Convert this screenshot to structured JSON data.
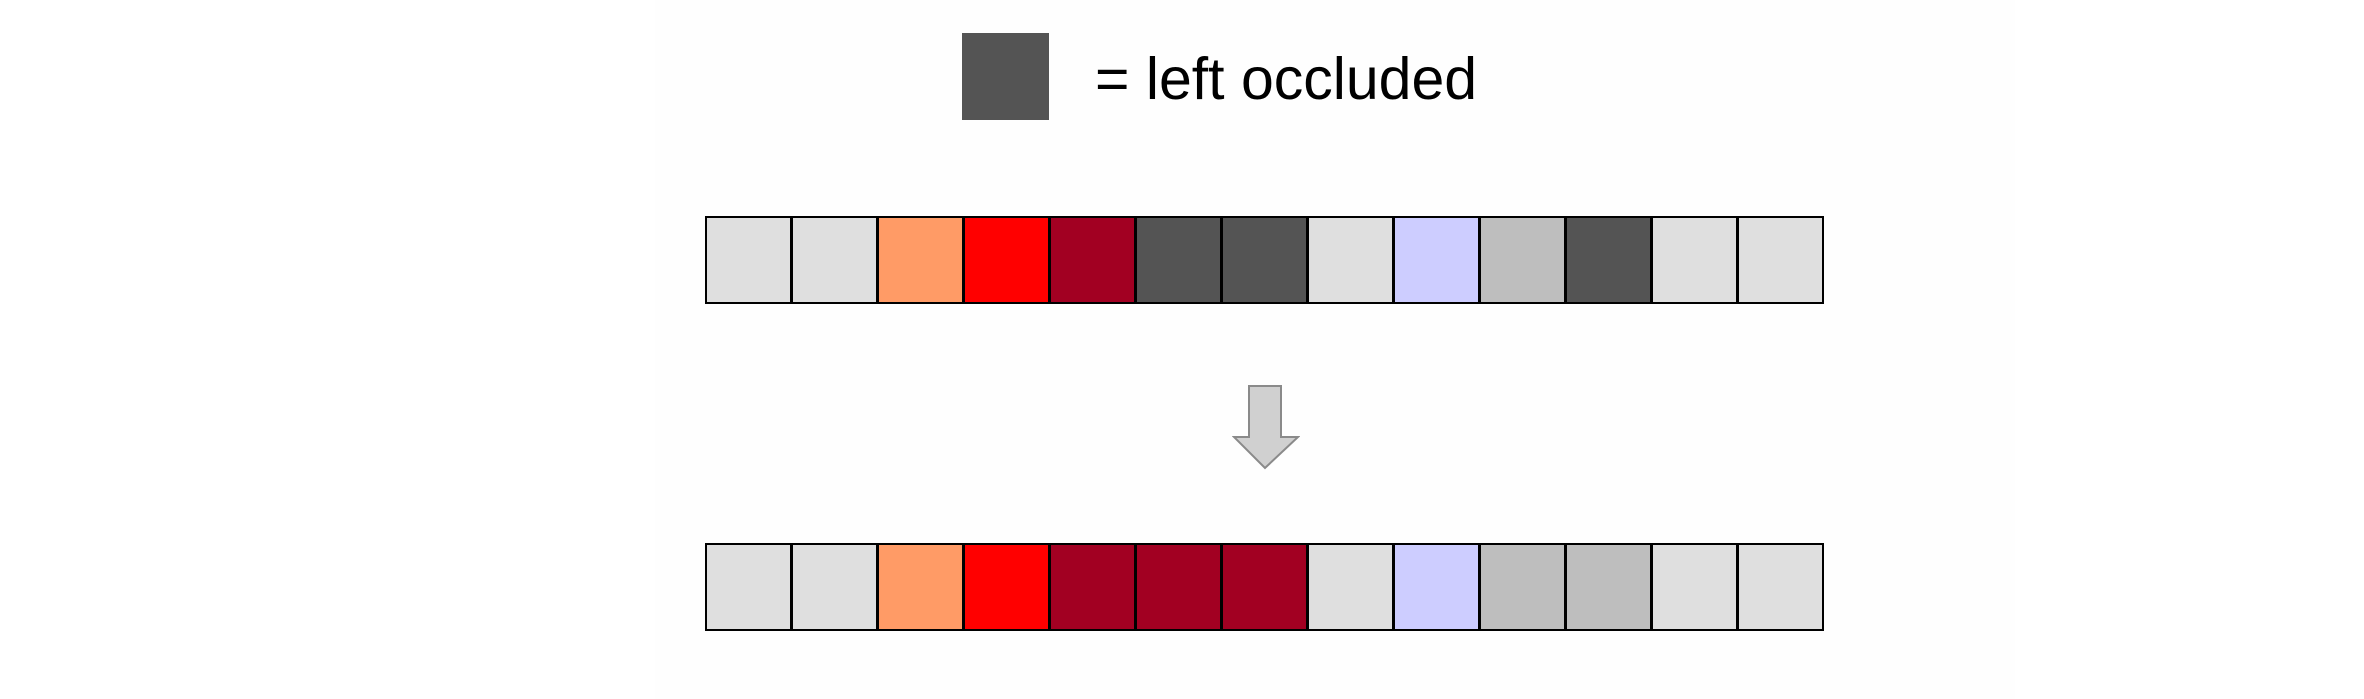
{
  "legend": {
    "label": "= left occluded",
    "swatch_color": "#545454"
  },
  "rows": {
    "before": [
      "#dfdfdf",
      "#dfdfdf",
      "#ff9b66",
      "#ff0000",
      "#a20022",
      "#545454",
      "#545454",
      "#dfdfdf",
      "#cdcdff",
      "#bebebe",
      "#545454",
      "#dfdfdf",
      "#dfdfdf"
    ],
    "after": [
      "#dfdfdf",
      "#dfdfdf",
      "#ff9b66",
      "#ff0000",
      "#a20022",
      "#a20022",
      "#a20022",
      "#dfdfdf",
      "#cdcdff",
      "#bebebe",
      "#bebebe",
      "#dfdfdf",
      "#dfdfdf"
    ]
  },
  "arrow": {
    "fill": "#d0d0d0",
    "stroke": "#8a8a8a"
  }
}
